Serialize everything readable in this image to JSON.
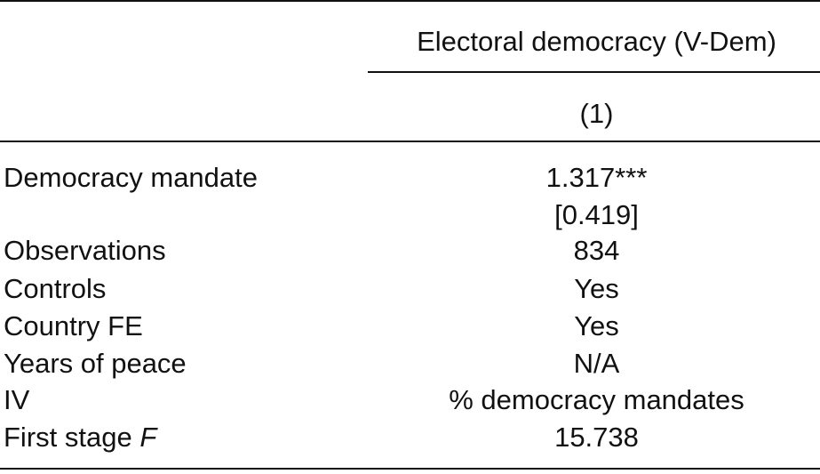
{
  "header": {
    "dependent_variable": "Electoral democracy (V-Dem)",
    "column_number": "(1)"
  },
  "rows": [
    {
      "label": "Democracy mandate",
      "value": "1.317***",
      "se": "[0.419]"
    },
    {
      "label": "Observations",
      "value": "834"
    },
    {
      "label": "Controls",
      "value": "Yes"
    },
    {
      "label": "Country FE",
      "value": "Yes"
    },
    {
      "label": "Years of peace",
      "value": "N/A"
    },
    {
      "label": "IV",
      "value": "% democracy mandates"
    },
    {
      "label": "First stage",
      "label_italic": "F",
      "value": "15.738"
    }
  ]
}
